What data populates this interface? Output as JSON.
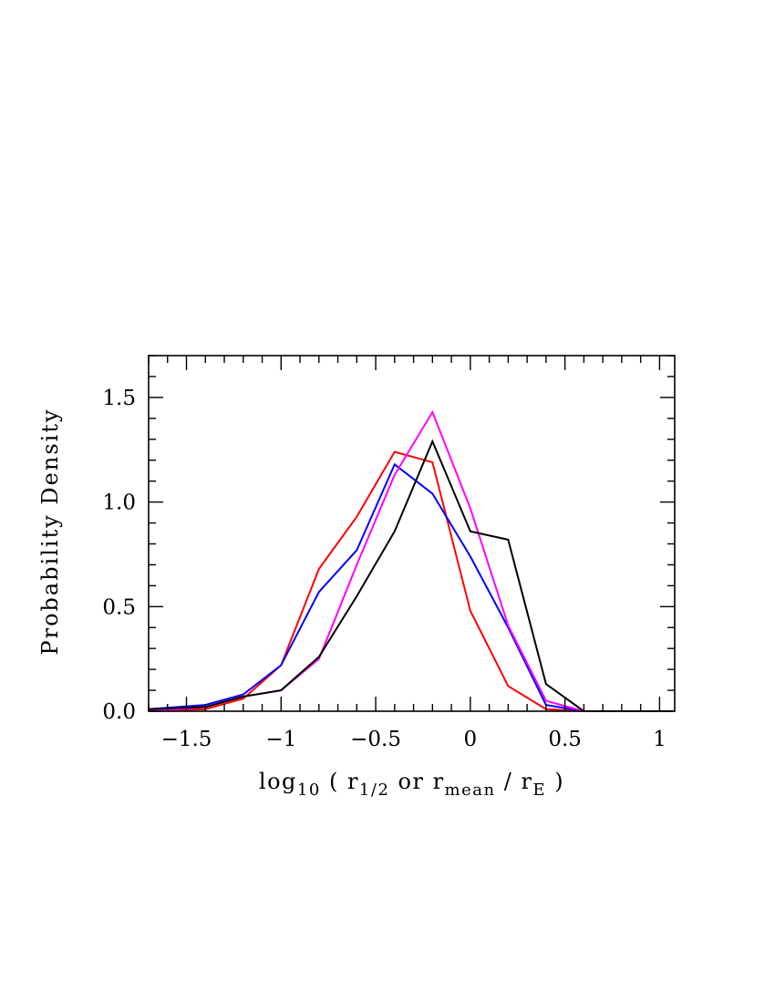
{
  "chart_data": {
    "type": "line",
    "title": "",
    "xlabel": {
      "parts": [
        {
          "text": "log",
          "shift": "base"
        },
        {
          "text": "10",
          "shift": "sub"
        },
        {
          "text": " ( r",
          "shift": "base"
        },
        {
          "text": "1/2",
          "shift": "sub"
        },
        {
          "text": " or r",
          "shift": "base"
        },
        {
          "text": "mean",
          "shift": "sub"
        },
        {
          "text": " / r",
          "shift": "base"
        },
        {
          "text": "E",
          "shift": "sub"
        },
        {
          "text": " )",
          "shift": "base"
        }
      ]
    },
    "ylabel": "Probability Density",
    "xlim": [
      -1.7,
      1.08
    ],
    "ylim": [
      0,
      1.7
    ],
    "grid": false,
    "x_ticks": [
      {
        "value": -1.5,
        "label": "−1.5"
      },
      {
        "value": -1.0,
        "label": "−1"
      },
      {
        "value": -0.5,
        "label": "−0.5"
      },
      {
        "value": 0.0,
        "label": "0"
      },
      {
        "value": 0.5,
        "label": "0.5"
      },
      {
        "value": 1.0,
        "label": "1"
      }
    ],
    "x_minor_step": 0.1,
    "y_ticks": [
      {
        "value": 0.0,
        "label": "0.0"
      },
      {
        "value": 0.5,
        "label": "0.5"
      },
      {
        "value": 1.0,
        "label": "1.0"
      },
      {
        "value": 1.5,
        "label": "1.5"
      }
    ],
    "y_minor_step": 0.1,
    "series": [
      {
        "color": "#ff0000",
        "x": [
          -1.7,
          -1.4,
          -1.2,
          -1.0,
          -0.8,
          -0.6,
          -0.4,
          -0.2,
          0.0,
          0.2,
          0.4,
          0.6,
          0.8,
          1.0,
          1.08
        ],
        "y": [
          0.0,
          0.01,
          0.06,
          0.22,
          0.68,
          0.93,
          1.24,
          1.19,
          0.48,
          0.12,
          0.01,
          0.0,
          0.0,
          0.0,
          0.0
        ]
      },
      {
        "color": "#0000ff",
        "x": [
          -1.7,
          -1.4,
          -1.2,
          -1.0,
          -0.8,
          -0.6,
          -0.4,
          -0.2,
          0.0,
          0.2,
          0.4,
          0.6,
          0.8,
          1.0,
          1.08
        ],
        "y": [
          0.01,
          0.03,
          0.08,
          0.22,
          0.57,
          0.77,
          1.18,
          1.04,
          0.74,
          0.4,
          0.03,
          0.0,
          0.0,
          0.0,
          0.0
        ]
      },
      {
        "color": "#ff00ff",
        "x": [
          -1.7,
          -1.4,
          -1.2,
          -1.0,
          -0.8,
          -0.6,
          -0.4,
          -0.2,
          0.0,
          0.2,
          0.4,
          0.6,
          0.8,
          1.0,
          1.08
        ],
        "y": [
          0.0,
          0.02,
          0.07,
          0.1,
          0.25,
          0.7,
          1.13,
          1.43,
          0.97,
          0.41,
          0.05,
          0.0,
          0.0,
          0.0,
          0.0
        ]
      },
      {
        "color": "#000000",
        "x": [
          -1.7,
          -1.4,
          -1.2,
          -1.0,
          -0.8,
          -0.6,
          -0.4,
          -0.2,
          0.0,
          0.2,
          0.4,
          0.6,
          0.8,
          1.0,
          1.08
        ],
        "y": [
          0.01,
          0.02,
          0.07,
          0.1,
          0.26,
          0.55,
          0.86,
          1.29,
          0.86,
          0.82,
          0.13,
          0.0,
          0.0,
          0.0,
          0.0
        ]
      }
    ]
  }
}
